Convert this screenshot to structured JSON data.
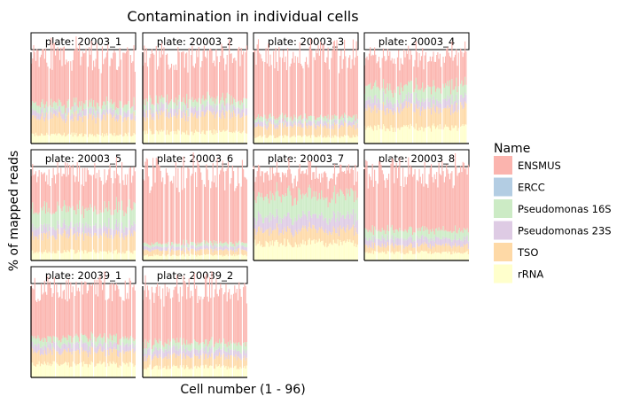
{
  "chart_data": {
    "type": "bar",
    "title": "Contamination in individual cells",
    "xlabel": "Cell number (1 - 96)",
    "ylabel": "% of mapped reads",
    "ylim": [
      0,
      100
    ],
    "stacked": true,
    "facet_prefix": "plate: ",
    "panels": [
      {
        "label": "plate: 20003_1",
        "missing_cells": [
          17,
          36,
          52,
          64,
          72,
          84,
          91
        ],
        "profile": {
          "ENSMUS": 55,
          "ERCC": 0,
          "Pseudomonas 16S": 8,
          "Pseudomonas 23S": 7,
          "TSO": 20,
          "rRNA": 10
        }
      },
      {
        "label": "plate: 20003_2",
        "missing_cells": [
          6,
          12,
          21,
          28,
          35,
          44,
          53,
          61,
          70,
          79,
          87,
          94
        ],
        "profile": {
          "ENSMUS": 50,
          "ERCC": 0,
          "Pseudomonas 16S": 9,
          "Pseudomonas 23S": 8,
          "TSO": 20,
          "rRNA": 13
        }
      },
      {
        "label": "plate: 20003_3",
        "missing_cells": [
          10,
          18,
          26,
          33,
          40,
          47,
          55,
          63,
          71,
          78,
          86
        ],
        "profile": {
          "ENSMUS": 70,
          "ERCC": 0,
          "Pseudomonas 16S": 5,
          "Pseudomonas 23S": 5,
          "TSO": 12,
          "rRNA": 8
        }
      },
      {
        "label": "plate: 20003_4",
        "missing_cells": [
          16,
          30,
          45,
          58,
          72,
          88,
          95,
          96
        ],
        "profile": {
          "ENSMUS": 35,
          "ERCC": 0,
          "Pseudomonas 16S": 15,
          "Pseudomonas 23S": 10,
          "TSO": 22,
          "rRNA": 18
        }
      },
      {
        "label": "plate: 20003_5",
        "missing_cells": [
          9,
          19,
          27,
          38,
          46,
          57,
          62,
          66,
          75,
          83,
          90
        ],
        "profile": {
          "ENSMUS": 40,
          "ERCC": 0,
          "Pseudomonas 16S": 20,
          "Pseudomonas 23S": 10,
          "TSO": 20,
          "rRNA": 10
        }
      },
      {
        "label": "plate: 20003_6",
        "missing_cells": [
          20,
          25,
          30,
          35,
          40,
          44,
          48,
          56,
          62,
          70,
          80,
          90
        ],
        "profile": {
          "ENSMUS": 80,
          "ERCC": 0,
          "Pseudomonas 16S": 4,
          "Pseudomonas 23S": 4,
          "TSO": 6,
          "rRNA": 6
        }
      },
      {
        "label": "plate: 20003_7",
        "missing_cells": [],
        "profile": {
          "ENSMUS": 25,
          "ERCC": 0,
          "Pseudomonas 16S": 25,
          "Pseudomonas 23S": 15,
          "TSO": 15,
          "rRNA": 20
        }
      },
      {
        "label": "plate: 20003_8",
        "missing_cells": [
          12,
          24,
          35,
          48
        ],
        "profile": {
          "ENSMUS": 65,
          "ERCC": 0,
          "Pseudomonas 16S": 10,
          "Pseudomonas 23S": 8,
          "TSO": 8,
          "rRNA": 9
        }
      },
      {
        "label": "plate: 20039_1",
        "missing_cells": [
          23,
          40,
          46,
          58,
          70,
          84,
          93
        ],
        "profile": {
          "ENSMUS": 55,
          "ERCC": 0,
          "Pseudomonas 16S": 8,
          "Pseudomonas 23S": 8,
          "TSO": 14,
          "rRNA": 15
        }
      },
      {
        "label": "plate: 20039_2",
        "missing_cells": [
          8,
          18,
          27,
          36,
          47,
          55,
          65,
          74,
          83,
          92
        ],
        "profile": {
          "ENSMUS": 60,
          "ERCC": 0,
          "Pseudomonas 16S": 8,
          "Pseudomonas 23S": 8,
          "TSO": 12,
          "rRNA": 12
        }
      }
    ],
    "legend": {
      "title": "Name",
      "placement": "right",
      "entries": [
        {
          "name": "ENSMUS",
          "color": "#fbb4ae"
        },
        {
          "name": "ERCC",
          "color": "#b3cde3"
        },
        {
          "name": "Pseudomonas 16S",
          "color": "#ccebc5"
        },
        {
          "name": "Pseudomonas 23S",
          "color": "#decbe4"
        },
        {
          "name": "TSO",
          "color": "#fed9a6"
        },
        {
          "name": "rRNA",
          "color": "#ffffcc"
        }
      ]
    },
    "grid": false
  }
}
